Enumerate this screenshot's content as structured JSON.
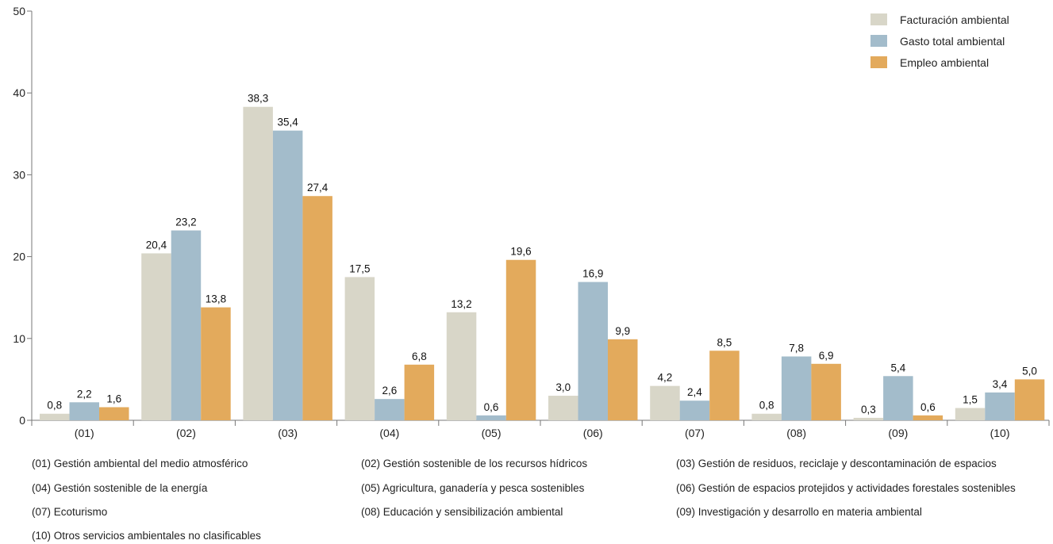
{
  "chart_data": {
    "type": "bar",
    "categories": [
      "(01)",
      "(02)",
      "(03)",
      "(04)",
      "(05)",
      "(06)",
      "(07)",
      "(08)",
      "(09)",
      "(10)"
    ],
    "series": [
      {
        "name": "Facturación ambiental",
        "color": "#d8d6c8",
        "values": [
          0.8,
          20.4,
          38.3,
          17.5,
          13.2,
          3.0,
          4.2,
          0.8,
          0.3,
          1.5
        ],
        "labels": [
          "0,8",
          "20,4",
          "38,3",
          "17,5",
          "13,2",
          "3,0",
          "4,2",
          "0,8",
          "0,3",
          "1,5"
        ]
      },
      {
        "name": "Gasto total ambiental",
        "color": "#a3bccb",
        "values": [
          2.2,
          23.2,
          35.4,
          2.6,
          0.6,
          16.9,
          2.4,
          7.8,
          5.4,
          3.4
        ],
        "labels": [
          "2,2",
          "23,2",
          "35,4",
          "2,6",
          "0,6",
          "16,9",
          "2,4",
          "7,8",
          "5,4",
          "3,4"
        ]
      },
      {
        "name": "Empleo ambiental",
        "color": "#e3aa5c",
        "values": [
          1.6,
          13.8,
          27.4,
          6.8,
          19.6,
          9.9,
          8.5,
          6.9,
          0.6,
          5.0
        ],
        "labels": [
          "1,6",
          "13,8",
          "27,4",
          "6,8",
          "19,6",
          "9,9",
          "8,5",
          "6,9",
          "0,6",
          "5,0"
        ]
      }
    ],
    "yticks": [
      "0",
      "10",
      "20",
      "30",
      "40",
      "50"
    ],
    "ylim": [
      0,
      50
    ],
    "grid": false,
    "legend_position": "top-right",
    "title": "",
    "xlabel": "",
    "ylabel": ""
  },
  "notes": [
    "(01) Gestión ambiental del medio atmosférico",
    "(02) Gestión sostenible de los recursos hídricos",
    "(03) Gestión de residuos, reciclaje y descontaminación de espacios",
    "(04) Gestión sostenible de la energía",
    "(05) Agricultura, ganadería y pesca sostenibles",
    "(06) Gestión de espacios protejidos y actividades forestales sostenibles",
    "(07) Ecoturismo",
    "(08) Educación y sensibilización ambiental",
    "(09) Investigación y desarrollo en materia ambiental",
    "(10) Otros servicios ambientales no clasificables"
  ]
}
